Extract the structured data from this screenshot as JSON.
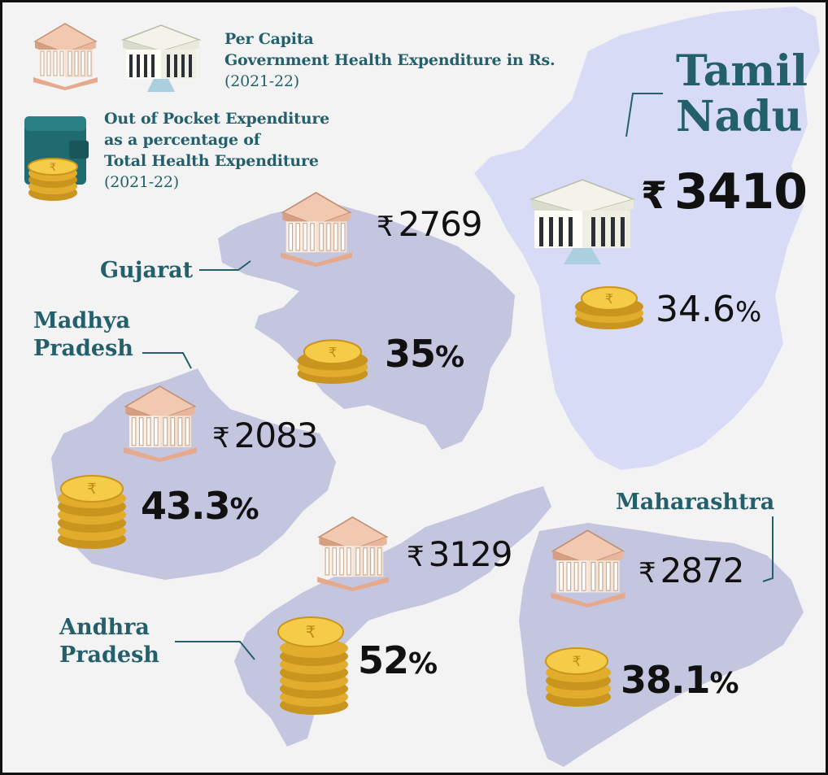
{
  "legend": {
    "expenditure_line1": "Per Capita",
    "expenditure_line2": "Government Health Expenditure in Rs.",
    "expenditure_year": "(2021-22)",
    "oop_line1": "Out of Pocket Expenditure",
    "oop_line2": "as a percentage of",
    "oop_line3": "Total Health Expenditure",
    "oop_year": "(2021-22)"
  },
  "currency_symbol": "₹",
  "percent_symbol": "%",
  "states": {
    "tamil_nadu": {
      "name_line1": "Tamil",
      "name_line2": "Nadu",
      "expenditure": "3410",
      "oop": "34.6"
    },
    "gujarat": {
      "name": "Gujarat",
      "expenditure": "2769",
      "oop": "35"
    },
    "madhya_pradesh": {
      "name_line1": "Madhya",
      "name_line2": "Pradesh",
      "expenditure": "2083",
      "oop": "43.3"
    },
    "andhra_pradesh": {
      "name_line1": "Andhra",
      "name_line2": "Pradesh",
      "expenditure": "3129",
      "oop": "52"
    },
    "maharashtra": {
      "name": "Maharashtra",
      "expenditure": "2872",
      "oop": "38.1"
    }
  },
  "colors": {
    "map_fill": "#c4c6df",
    "tn_fill": "#d8dbf6",
    "label_teal": "#24606b",
    "coin_gold": "#e8b92e",
    "building_peach": "#e7b89d",
    "wallet_teal": "#1f6b6f"
  },
  "icons": [
    "government-building-icon",
    "wallet-icon",
    "rupee-coin-stack-icon"
  ]
}
